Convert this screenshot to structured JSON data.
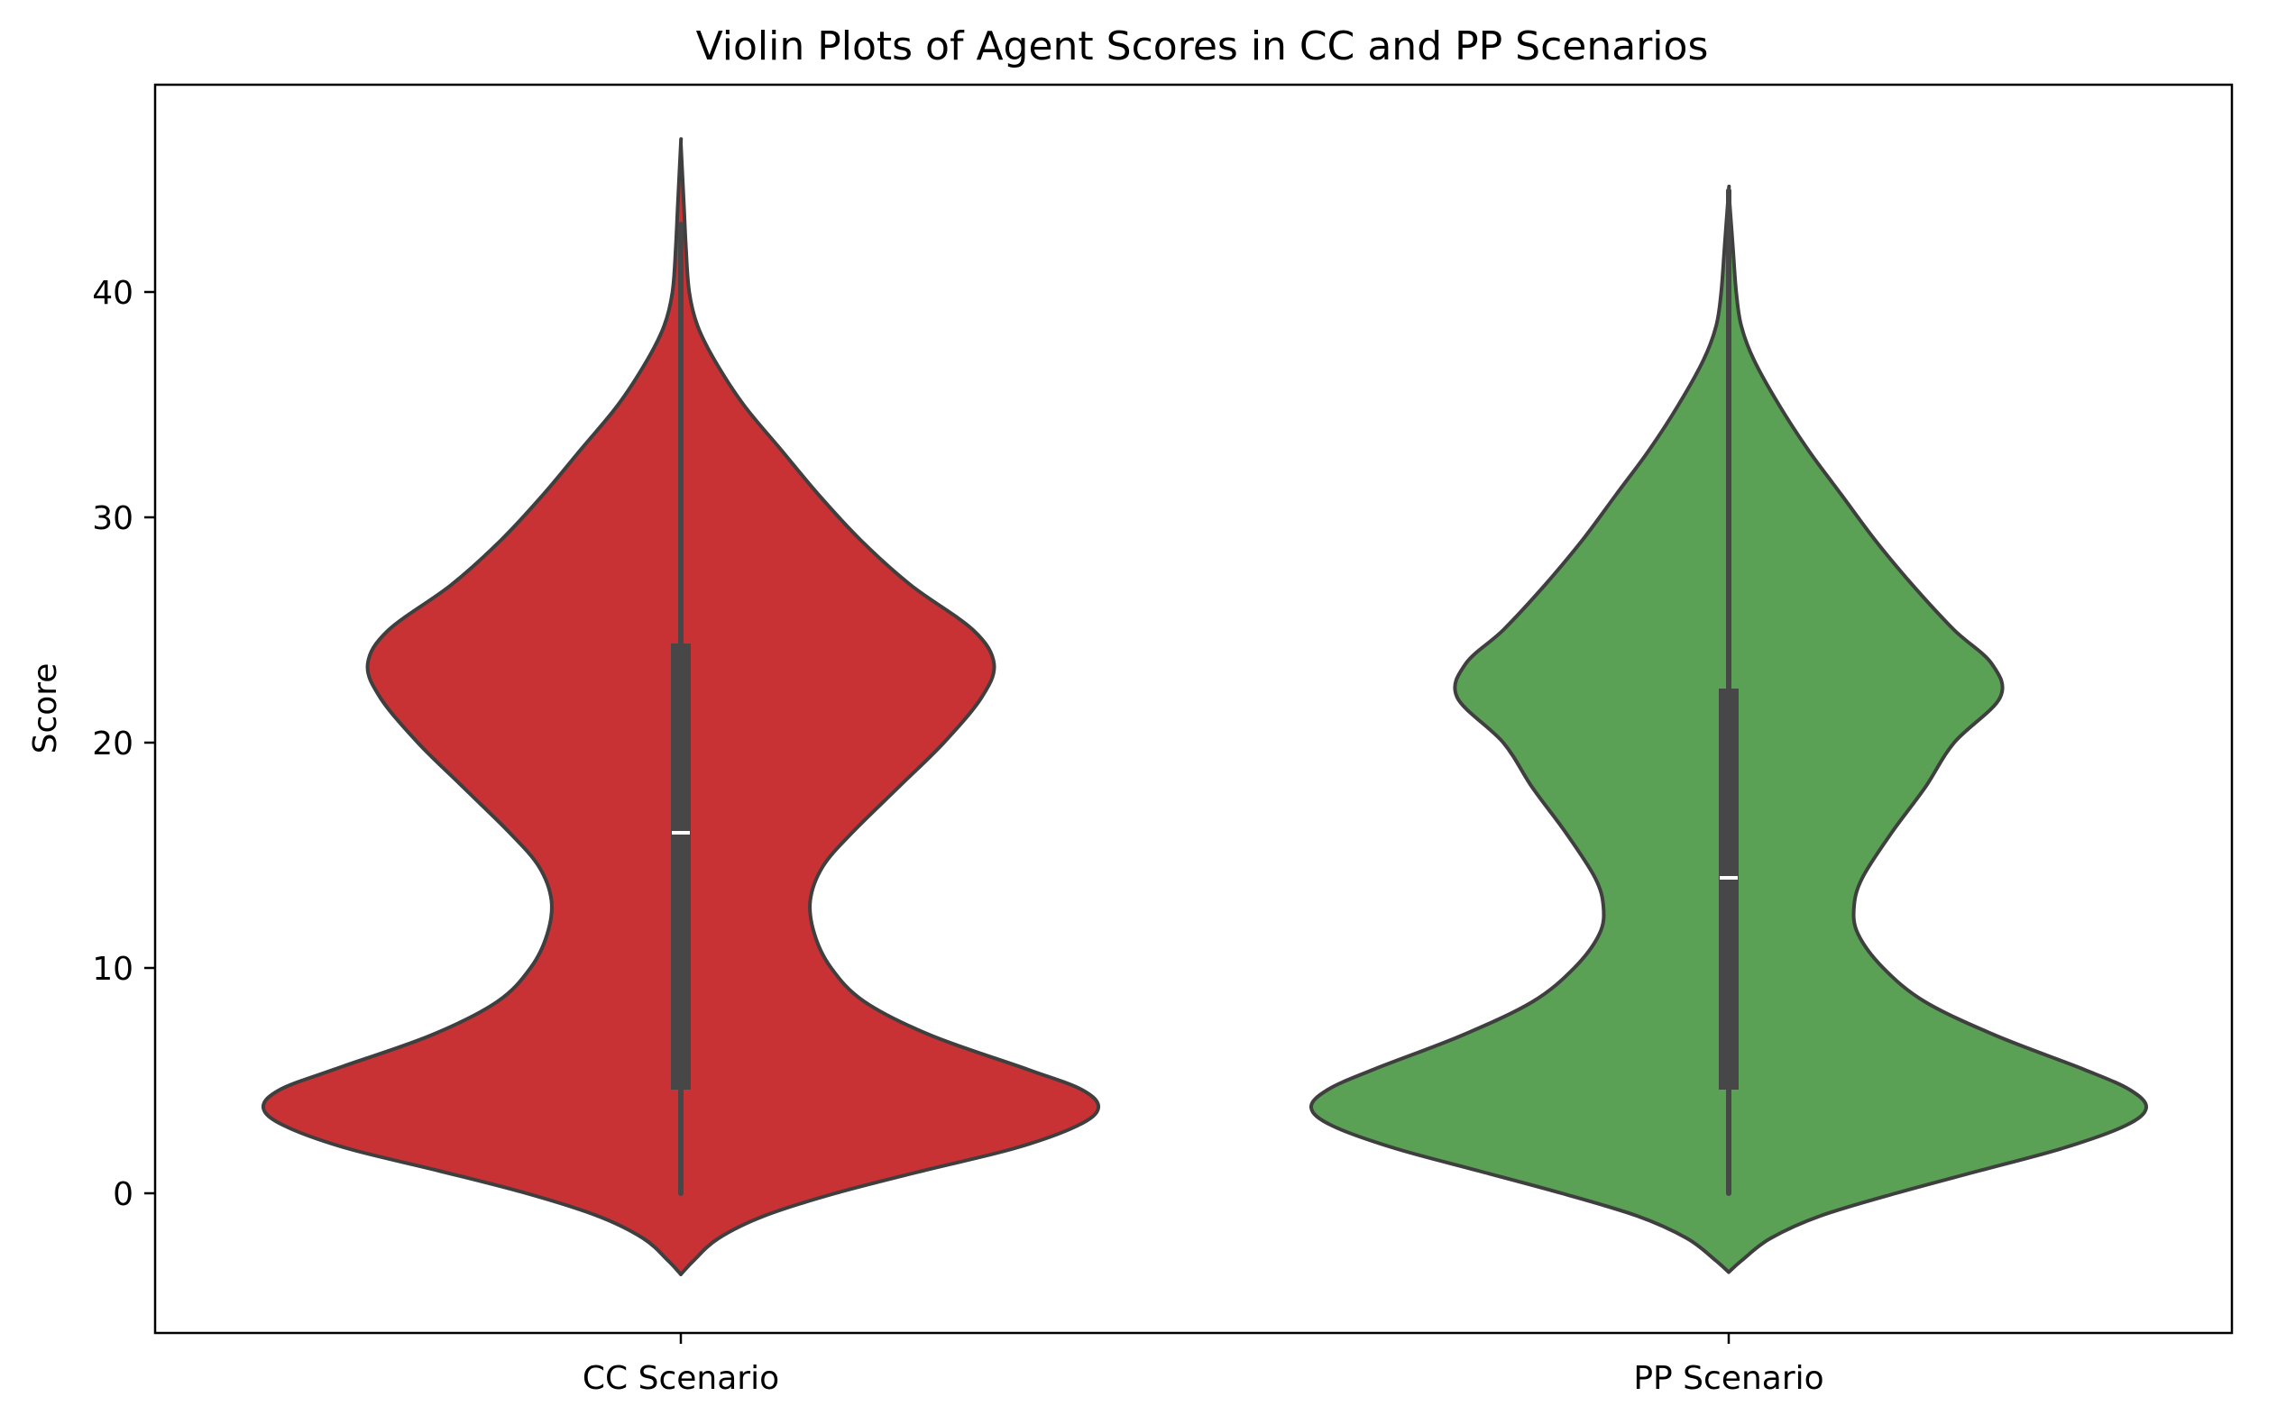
{
  "chart_data": {
    "type": "violin",
    "title": "Violin Plots of Agent Scores in CC and PP Scenarios",
    "xlabel": "",
    "ylabel": "Score",
    "ylim": [
      -6.2,
      49.2
    ],
    "y_ticks": [
      0,
      10,
      20,
      30,
      40
    ],
    "categories": [
      "CC Scenario",
      "PP Scenario"
    ],
    "grid": false,
    "series": [
      {
        "category": "CC Scenario",
        "color": "#c93234",
        "density_min": -3.6,
        "density_max": 46.6,
        "whisker_low": 0,
        "whisker_high": 43,
        "q1": 4.6,
        "median": 16.0,
        "q3": 24.4,
        "profile": [
          [
            -3.6,
            0.0
          ],
          [
            -3.0,
            0.03
          ],
          [
            -2.0,
            0.09
          ],
          [
            -1.0,
            0.2
          ],
          [
            0.0,
            0.37
          ],
          [
            1.0,
            0.58
          ],
          [
            2.0,
            0.8
          ],
          [
            3.0,
            0.95
          ],
          [
            3.8,
            1.0
          ],
          [
            4.6,
            0.96
          ],
          [
            5.5,
            0.83
          ],
          [
            7.0,
            0.6
          ],
          [
            8.5,
            0.44
          ],
          [
            10.0,
            0.36
          ],
          [
            11.5,
            0.32
          ],
          [
            13.0,
            0.31
          ],
          [
            14.5,
            0.34
          ],
          [
            16.0,
            0.41
          ],
          [
            18.0,
            0.52
          ],
          [
            20.0,
            0.63
          ],
          [
            22.0,
            0.72
          ],
          [
            23.5,
            0.75
          ],
          [
            25.0,
            0.7
          ],
          [
            27.0,
            0.55
          ],
          [
            29.0,
            0.43
          ],
          [
            31.0,
            0.33
          ],
          [
            33.0,
            0.24
          ],
          [
            35.0,
            0.15
          ],
          [
            37.0,
            0.08
          ],
          [
            38.5,
            0.04
          ],
          [
            40.0,
            0.02
          ],
          [
            42.0,
            0.012
          ],
          [
            44.0,
            0.007
          ],
          [
            46.6,
            0.0
          ]
        ]
      },
      {
        "category": "PP Scenario",
        "color": "#5ba155",
        "density_min": -3.5,
        "density_max": 44.5,
        "whisker_low": 0,
        "whisker_high": 44.5,
        "q1": 4.6,
        "median": 14.0,
        "q3": 22.4,
        "profile": [
          [
            -3.5,
            0.0
          ],
          [
            -3.0,
            0.03
          ],
          [
            -2.0,
            0.1
          ],
          [
            -1.0,
            0.22
          ],
          [
            0.0,
            0.4
          ],
          [
            1.0,
            0.6
          ],
          [
            2.0,
            0.8
          ],
          [
            3.0,
            0.95
          ],
          [
            3.8,
            1.0
          ],
          [
            4.6,
            0.96
          ],
          [
            5.5,
            0.85
          ],
          [
            7.0,
            0.64
          ],
          [
            8.5,
            0.47
          ],
          [
            10.0,
            0.37
          ],
          [
            11.5,
            0.31
          ],
          [
            12.7,
            0.3
          ],
          [
            14.0,
            0.32
          ],
          [
            16.0,
            0.39
          ],
          [
            18.0,
            0.47
          ],
          [
            20.0,
            0.54
          ],
          [
            22.0,
            0.65
          ],
          [
            23.5,
            0.63
          ],
          [
            25.0,
            0.54
          ],
          [
            27.0,
            0.44
          ],
          [
            29.0,
            0.35
          ],
          [
            31.0,
            0.27
          ],
          [
            33.0,
            0.19
          ],
          [
            35.0,
            0.12
          ],
          [
            37.0,
            0.06
          ],
          [
            38.5,
            0.03
          ],
          [
            40.0,
            0.018
          ],
          [
            42.0,
            0.01
          ],
          [
            44.5,
            0.0
          ]
        ]
      }
    ]
  }
}
